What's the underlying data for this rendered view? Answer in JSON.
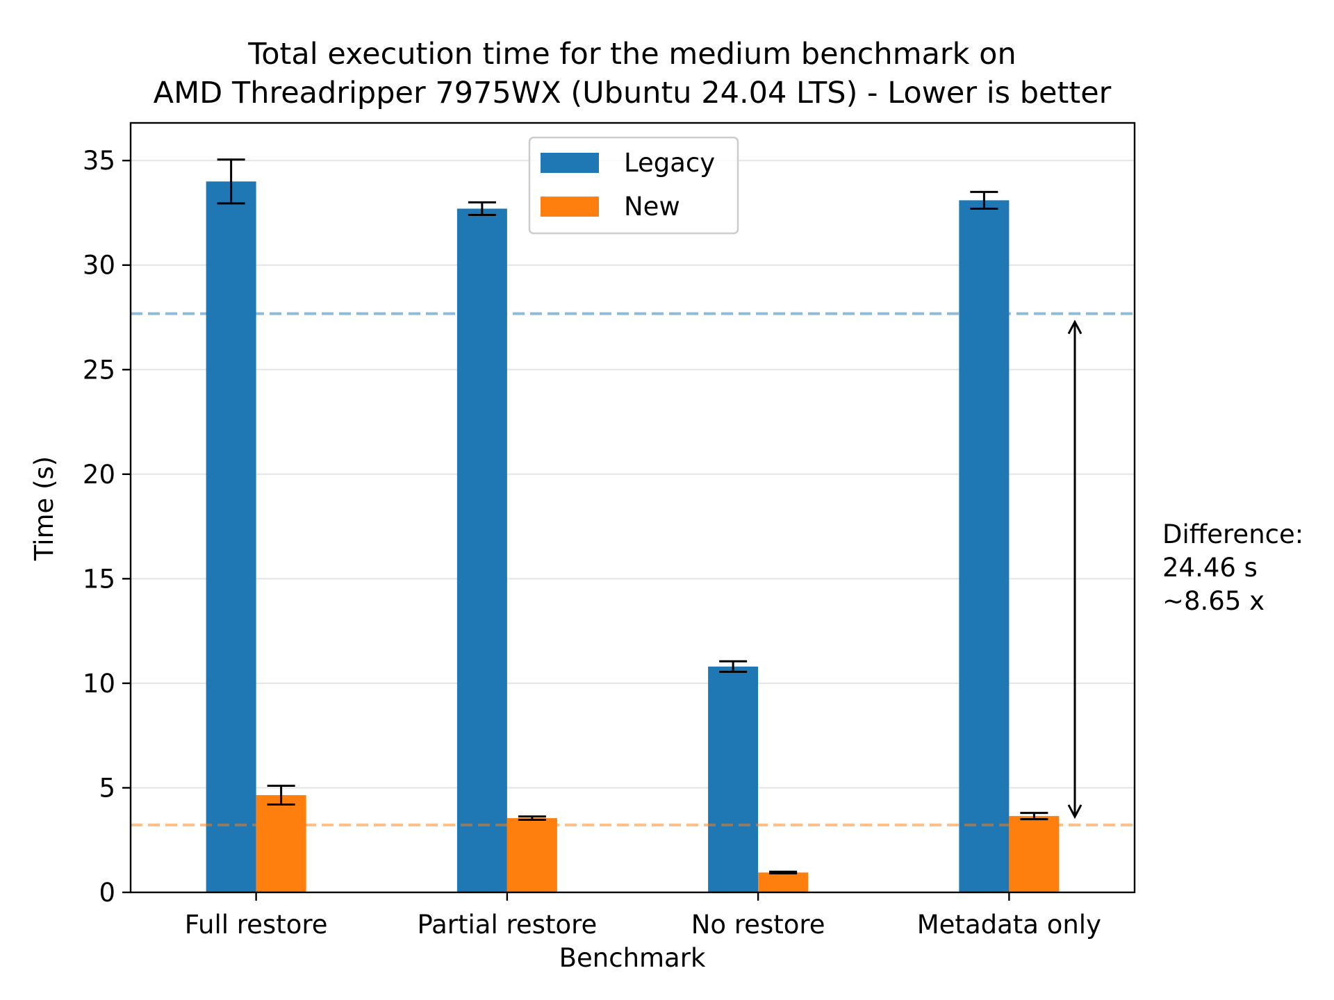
{
  "chart_data": {
    "type": "bar",
    "title": [
      "Total execution time for the medium benchmark on",
      "AMD Threadripper 7975WX (Ubuntu 24.04 LTS) - Lower is better"
    ],
    "xlabel": "Benchmark",
    "ylabel": "Time (s)",
    "categories": [
      "Full restore",
      "Partial restore",
      "No restore",
      "Metadata only"
    ],
    "ylim": [
      0,
      36.8
    ],
    "yticks": [
      0,
      5,
      10,
      15,
      20,
      25,
      30,
      35
    ],
    "grid": "horizontal",
    "legend_position": "top-center",
    "series": [
      {
        "name": "Legacy",
        "color": "#1f77b4",
        "values": [
          34.0,
          32.7,
          10.8,
          33.1
        ],
        "errors": [
          1.05,
          0.3,
          0.25,
          0.4
        ]
      },
      {
        "name": "New",
        "color": "#ff7f0e",
        "values": [
          4.65,
          3.55,
          0.95,
          3.65
        ],
        "errors": [
          0.45,
          0.08,
          0.04,
          0.15
        ]
      }
    ],
    "reference_lines": [
      {
        "value": 27.68,
        "color": "#1f77b4"
      },
      {
        "value": 3.22,
        "color": "#ff7f0e"
      }
    ],
    "annotation": {
      "lines": [
        "Difference:",
        "24.46 s",
        "~8.65 x"
      ]
    }
  }
}
